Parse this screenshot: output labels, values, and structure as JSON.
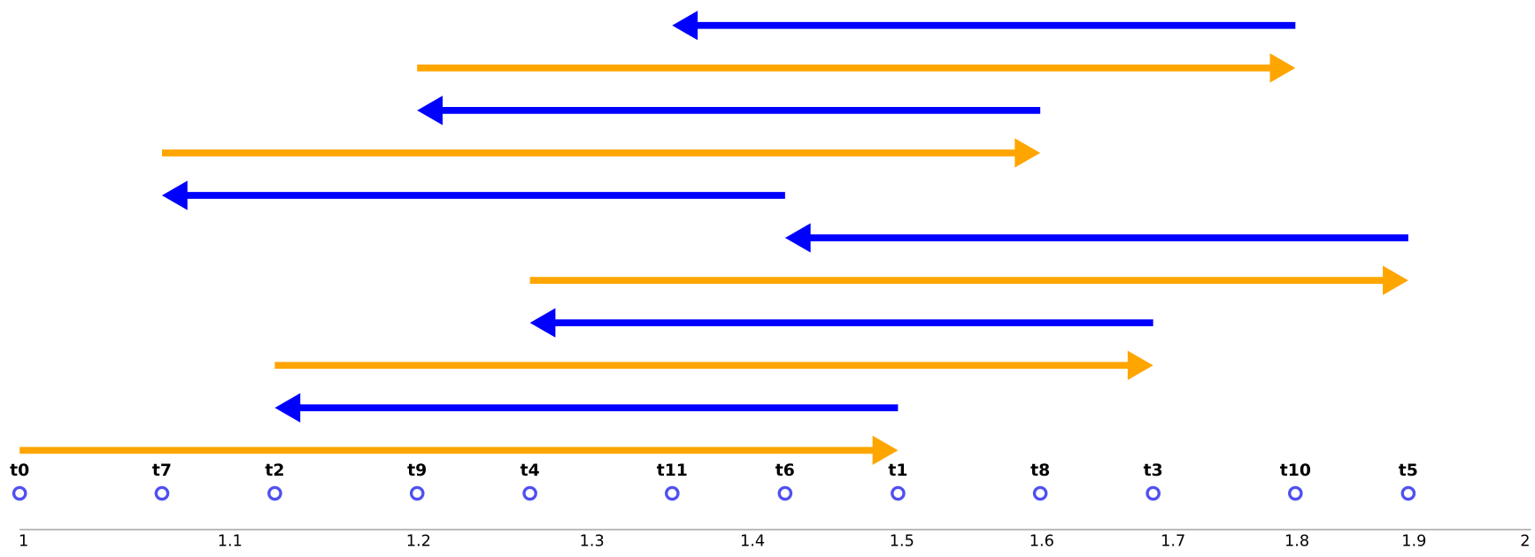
{
  "diagram": {
    "points": [
      {
        "label": "t0",
        "value": 1
      },
      {
        "label": "t1",
        "value": 1.5
      },
      {
        "label": "t2",
        "value": 1.125
      },
      {
        "label": "t3",
        "value": 1.6875
      },
      {
        "label": "t4",
        "value": 1.2656
      },
      {
        "label": "t5",
        "value": 1.8984
      },
      {
        "label": "t6",
        "value": 1.4238
      },
      {
        "label": "t7",
        "value": 1.0679
      },
      {
        "label": "t8",
        "value": 1.6018
      },
      {
        "label": "t9",
        "value": 1.2014
      },
      {
        "label": "t10",
        "value": 1.802
      },
      {
        "label": "t11",
        "value": 1.3515
      }
    ],
    "arrows": [
      {
        "from": "t0",
        "to": "t1",
        "color": "#ffa500"
      },
      {
        "from": "t1",
        "to": "t2",
        "color": "#0000ff"
      },
      {
        "from": "t2",
        "to": "t3",
        "color": "#ffa500"
      },
      {
        "from": "t3",
        "to": "t4",
        "color": "#0000ff"
      },
      {
        "from": "t4",
        "to": "t5",
        "color": "#ffa500"
      },
      {
        "from": "t5",
        "to": "t6",
        "color": "#0000ff"
      },
      {
        "from": "t6",
        "to": "t7",
        "color": "#0000ff"
      },
      {
        "from": "t7",
        "to": "t8",
        "color": "#ffa500"
      },
      {
        "from": "t8",
        "to": "t9",
        "color": "#0000ff"
      },
      {
        "from": "t9",
        "to": "t10",
        "color": "#ffa500"
      },
      {
        "from": "t10",
        "to": "t11",
        "color": "#0000ff"
      }
    ],
    "point_color": "#5050f0",
    "axis": {
      "log_scale": true,
      "xlim": [
        1,
        2
      ],
      "xticks": [
        1,
        1.1,
        1.2,
        1.3,
        1.4,
        1.5,
        1.6,
        1.7,
        1.8,
        1.9,
        2
      ]
    }
  }
}
